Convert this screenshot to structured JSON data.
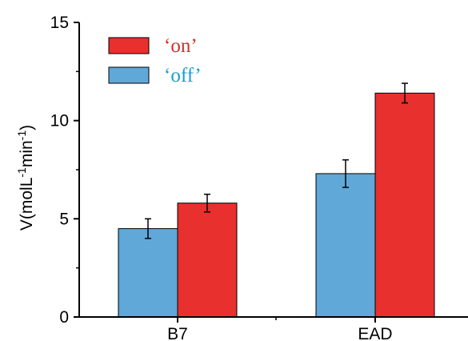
{
  "chart_data": {
    "type": "bar",
    "categories": [
      "B7",
      "EAD"
    ],
    "series": [
      {
        "name": "‘off’",
        "values": [
          4.5,
          7.3
        ],
        "errors": [
          0.5,
          0.7
        ],
        "color": "#5fa8d8",
        "label_color": "#1a9cd0"
      },
      {
        "name": "‘on’",
        "values": [
          5.8,
          11.4
        ],
        "errors": [
          0.45,
          0.5
        ],
        "color": "#e8302e",
        "label_color": "#d92b2b"
      }
    ],
    "ylabel_main": "V(molL",
    "ylabel_sup1": "-1",
    "ylabel_mid": "min",
    "ylabel_sup2": "-1",
    "ylabel_end": ")",
    "xlabel": "",
    "ylim": [
      0,
      15
    ],
    "yticks": [
      "0",
      "5",
      "10",
      "15"
    ],
    "grid": false,
    "legend_position": "top-left",
    "legend_order": [
      1,
      0
    ]
  }
}
